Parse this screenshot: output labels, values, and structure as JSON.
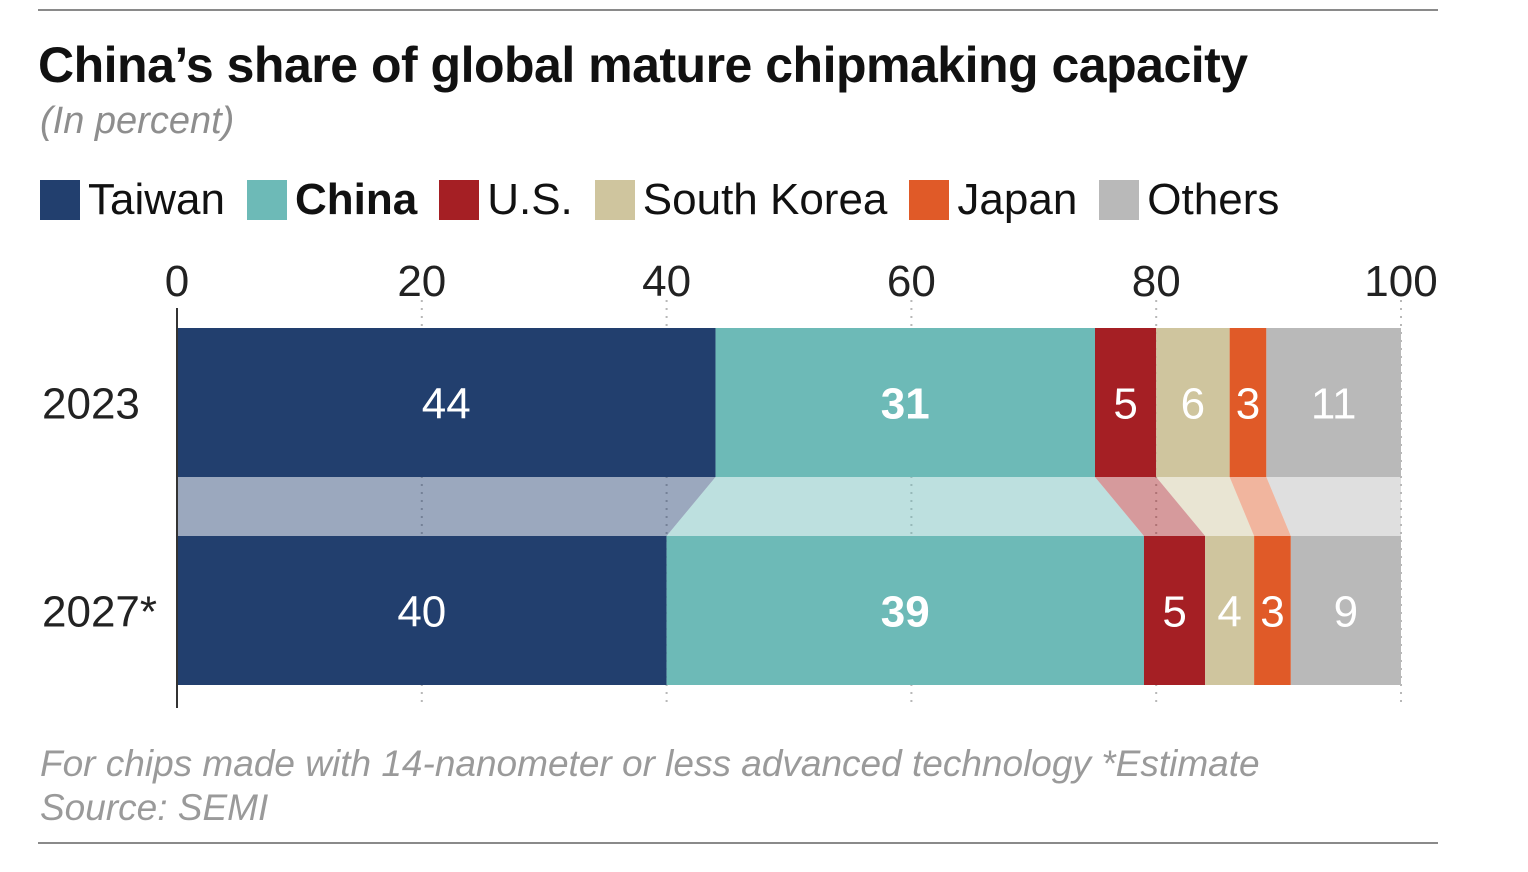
{
  "chart_data": {
    "type": "bar",
    "orientation": "horizontal",
    "stacked": true,
    "title": "China’s share of global mature chipmaking capacity",
    "subtitle": "(In percent)",
    "categories": [
      "2023",
      "2027*"
    ],
    "series": [
      {
        "name": "Taiwan",
        "color": "#223f6e",
        "label_color": "#ffffff",
        "values": [
          44,
          40
        ]
      },
      {
        "name": "China",
        "color": "#6dbab7",
        "label_color": "#ffffff",
        "bold": true,
        "values": [
          31,
          39
        ]
      },
      {
        "name": "U.S.",
        "color": "#a51f24",
        "label_color": "#ffffff",
        "values": [
          5,
          5
        ]
      },
      {
        "name": "South Korea",
        "color": "#cfc59e",
        "label_color": "#ffffff",
        "values": [
          6,
          4
        ]
      },
      {
        "name": "Japan",
        "color": "#e05a28",
        "label_color": "#ffffff",
        "values": [
          3,
          3
        ]
      },
      {
        "name": "Others",
        "color": "#b9b9b9",
        "label_color": "#ffffff",
        "values": [
          11,
          9
        ]
      }
    ],
    "xlim": [
      0,
      100
    ],
    "xticks": [
      "0",
      "20",
      "40",
      "60",
      "80",
      "100"
    ],
    "grid": "vertical-dotted",
    "xlabel": "",
    "ylabel": ""
  },
  "footnote": {
    "line1": "For chips made with 14-nanometer or less advanced technology  *Estimate",
    "line2": "Source: SEMI"
  }
}
